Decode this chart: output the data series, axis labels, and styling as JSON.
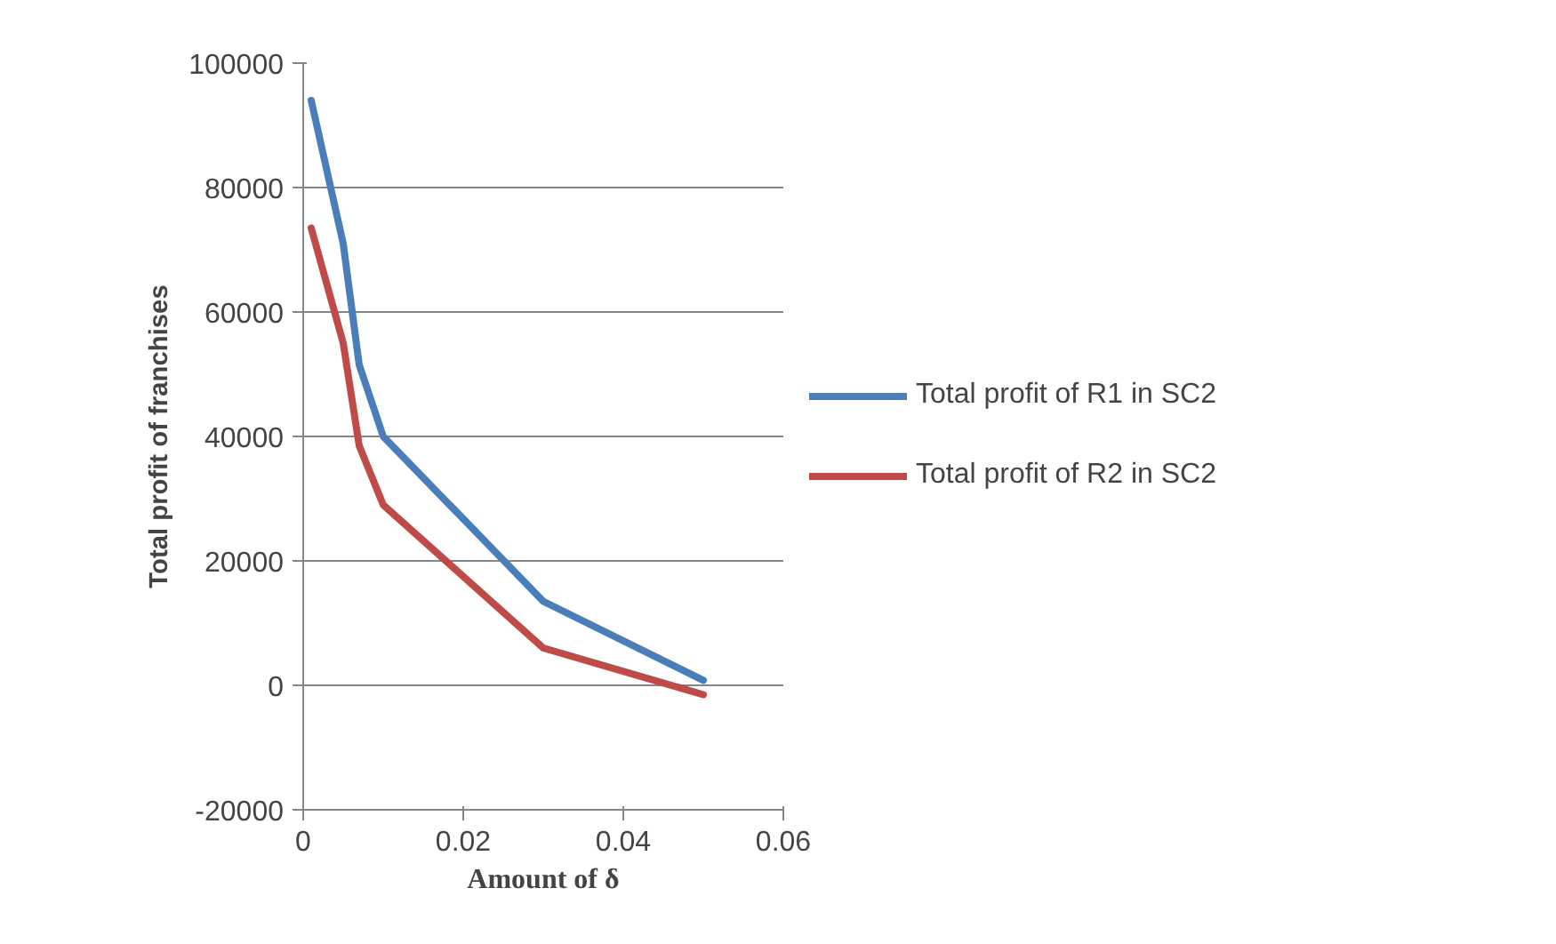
{
  "chart_data": {
    "type": "line",
    "xlabel": "Amount of δ",
    "ylabel": "Total profit of franchises",
    "x": [
      0.001,
      0.005,
      0.007,
      0.01,
      0.03,
      0.05
    ],
    "series": [
      {
        "name": "Total profit of R1 in SC2",
        "color": "#4a7ebb",
        "values": [
          94000,
          71000,
          51500,
          40000,
          13500,
          800
        ]
      },
      {
        "name": "Total profit of R2 in SC2",
        "color": "#be4b48",
        "values": [
          73500,
          55000,
          38500,
          29000,
          6000,
          -1500
        ]
      }
    ],
    "xlim": [
      0,
      0.06
    ],
    "xticks": [
      {
        "value": 0,
        "label": "0"
      },
      0.02,
      0.04,
      0.06
    ],
    "ylim": [
      -20000,
      100000
    ],
    "yticks": [
      -20000,
      0,
      20000,
      40000,
      60000,
      80000,
      100000
    ],
    "grid": "y",
    "legend": "right",
    "marker": "none",
    "line_style": "solid"
  }
}
